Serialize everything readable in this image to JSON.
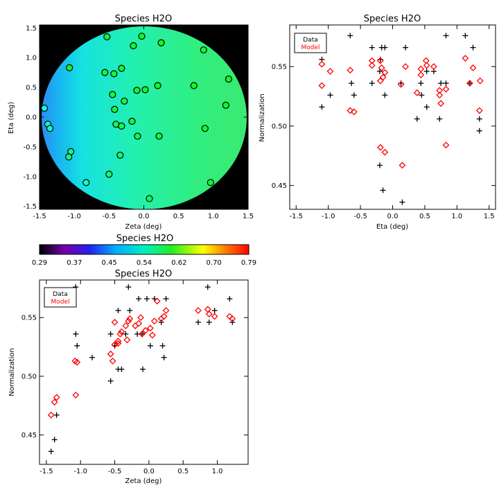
{
  "colors": {
    "data": "#000000",
    "model": "#ff0000",
    "background": "#000000"
  },
  "map_panel": {
    "title": "Species H2O",
    "xlabel": "Zeta (deg)",
    "ylabel": "Eta (deg)",
    "xlim": [
      -1.5,
      1.5
    ],
    "ylim": [
      -1.55,
      1.55
    ],
    "xticks": [
      "-1.5",
      "-1.0",
      "-0.5",
      "0.0",
      "0.5",
      "1.0",
      "1.5"
    ],
    "yticks": [
      "-1.5",
      "-1.0",
      "-0.5",
      "0.0",
      "0.5",
      "1.0",
      "1.5"
    ]
  },
  "colorbar": {
    "title": "Species H2O",
    "range": [
      0.29,
      0.79
    ],
    "ticks": [
      "0.29",
      "0.37",
      "0.45",
      "0.54",
      "0.62",
      "0.70",
      "0.79"
    ]
  },
  "eta_panel": {
    "title": "Species H2O",
    "xlabel": "Eta (deg)",
    "ylabel": "Normalization",
    "xlim": [
      -1.6,
      1.6
    ],
    "ylim": [
      0.43,
      0.585
    ],
    "xticks": [
      "-1.5",
      "-1.0",
      "-0.5",
      "0.0",
      "0.5",
      "1.0",
      "1.5"
    ],
    "yticks": [
      "0.45",
      "0.50",
      "0.55"
    ],
    "legend": {
      "data_label": "Data",
      "model_label": "Model"
    }
  },
  "zeta_panel": {
    "title": "Species H2O",
    "xlabel": "Zeta (deg)",
    "ylabel": "Normalization",
    "xlim": [
      -1.6,
      1.45
    ],
    "ylim": [
      0.425,
      0.582
    ],
    "xticks": [
      "-1.5",
      "-1.0",
      "-0.5",
      "0.0",
      "0.5",
      "1.0"
    ],
    "yticks": [
      "0.45",
      "0.50",
      "0.55"
    ],
    "legend": {
      "data_label": "Data",
      "model_label": "Model"
    }
  },
  "chart_data": [
    {
      "type": "scatter",
      "title": "Species H2O",
      "xlabel": "Zeta (deg)",
      "ylabel": "Eta (deg)",
      "xlim": [
        -1.5,
        1.5
      ],
      "ylim": [
        -1.55,
        1.55
      ],
      "grid": false,
      "points": [
        {
          "x": -0.53,
          "y": 1.35,
          "v": 0.548
        },
        {
          "x": -0.03,
          "y": 1.36,
          "v": 0.556
        },
        {
          "x": 0.25,
          "y": 1.25,
          "v": 0.563
        },
        {
          "x": -0.15,
          "y": 1.2,
          "v": 0.55
        },
        {
          "x": 0.86,
          "y": 1.13,
          "v": 0.555
        },
        {
          "x": -1.07,
          "y": 0.83,
          "v": 0.553
        },
        {
          "x": -0.32,
          "y": 0.82,
          "v": 0.551
        },
        {
          "x": -0.56,
          "y": 0.75,
          "v": 0.55
        },
        {
          "x": -0.43,
          "y": 0.73,
          "v": 0.549
        },
        {
          "x": 1.22,
          "y": 0.64,
          "v": 0.558
        },
        {
          "x": 0.72,
          "y": 0.53,
          "v": 0.556
        },
        {
          "x": 0.2,
          "y": 0.53,
          "v": 0.555
        },
        {
          "x": 0.02,
          "y": 0.46,
          "v": 0.553
        },
        {
          "x": -0.1,
          "y": 0.45,
          "v": 0.552
        },
        {
          "x": -0.45,
          "y": 0.38,
          "v": 0.546
        },
        {
          "x": -0.28,
          "y": 0.27,
          "v": 0.546
        },
        {
          "x": 1.18,
          "y": 0.2,
          "v": 0.555
        },
        {
          "x": -0.42,
          "y": 0.13,
          "v": 0.543
        },
        {
          "x": -1.43,
          "y": 0.15,
          "v": 0.467
        },
        {
          "x": -1.38,
          "y": -0.12,
          "v": 0.482
        },
        {
          "x": -1.35,
          "y": -0.19,
          "v": 0.478
        },
        {
          "x": -0.4,
          "y": -0.12,
          "v": 0.54
        },
        {
          "x": -0.32,
          "y": -0.15,
          "v": 0.538
        },
        {
          "x": -0.17,
          "y": -0.07,
          "v": 0.54
        },
        {
          "x": 0.88,
          "y": -0.19,
          "v": 0.551
        },
        {
          "x": -0.09,
          "y": -0.32,
          "v": 0.536
        },
        {
          "x": 0.22,
          "y": -0.32,
          "v": 0.544
        },
        {
          "x": -1.05,
          "y": -0.58,
          "v": 0.511
        },
        {
          "x": -1.08,
          "y": -0.67,
          "v": 0.513
        },
        {
          "x": -0.34,
          "y": -0.64,
          "v": 0.53
        },
        {
          "x": -0.5,
          "y": -0.96,
          "v": 0.518
        },
        {
          "x": -0.83,
          "y": -1.1,
          "v": 0.484
        },
        {
          "x": 0.96,
          "y": -1.1,
          "v": 0.549
        },
        {
          "x": 0.08,
          "y": -1.37,
          "v": 0.535
        }
      ]
    },
    {
      "type": "scatter",
      "title": "Species H2O",
      "xlabel": "Eta (deg)",
      "ylabel": "Normalization",
      "xlim": [
        -1.6,
        1.6
      ],
      "ylim": [
        0.43,
        0.585
      ],
      "legend": "top-left",
      "series": [
        {
          "name": "Data",
          "marker": "plus",
          "points": [
            [
              -1.34,
              0.566
            ],
            [
              -1.1,
              0.556
            ],
            [
              -1.1,
              0.516
            ],
            [
              -0.97,
              0.526
            ],
            [
              -0.66,
              0.576
            ],
            [
              -0.64,
              0.536
            ],
            [
              -0.6,
              0.526
            ],
            [
              -0.32,
              0.566
            ],
            [
              -0.32,
              0.536
            ],
            [
              -0.17,
              0.566
            ],
            [
              -0.19,
              0.556
            ],
            [
              -0.2,
              0.546
            ],
            [
              -0.12,
              0.566
            ],
            [
              -0.12,
              0.526
            ],
            [
              -0.2,
              0.467
            ],
            [
              -0.15,
              0.446
            ],
            [
              0.13,
              0.536
            ],
            [
              0.15,
              0.436
            ],
            [
              0.2,
              0.566
            ],
            [
              0.38,
              0.506
            ],
            [
              0.44,
              0.536
            ],
            [
              0.45,
              0.526
            ],
            [
              0.53,
              0.546
            ],
            [
              0.53,
              0.516
            ],
            [
              0.64,
              0.546
            ],
            [
              0.73,
              0.506
            ],
            [
              0.75,
              0.536
            ],
            [
              0.83,
              0.576
            ],
            [
              0.83,
              0.536
            ],
            [
              1.13,
              0.576
            ],
            [
              1.2,
              0.536
            ],
            [
              1.25,
              0.566
            ],
            [
              1.35,
              0.506
            ],
            [
              1.35,
              0.496
            ]
          ]
        },
        {
          "name": "Model",
          "marker": "diamond",
          "points": [
            [
              -1.37,
              0.564
            ],
            [
              -1.1,
              0.552
            ],
            [
              -1.1,
              0.534
            ],
            [
              -0.97,
              0.546
            ],
            [
              -0.66,
              0.547
            ],
            [
              -0.66,
              0.513
            ],
            [
              -0.6,
              0.512
            ],
            [
              -0.32,
              0.555
            ],
            [
              -0.32,
              0.551
            ],
            [
              -0.19,
              0.555
            ],
            [
              -0.17,
              0.549
            ],
            [
              -0.12,
              0.545
            ],
            [
              -0.15,
              0.541
            ],
            [
              -0.19,
              0.538
            ],
            [
              -0.19,
              0.482
            ],
            [
              -0.12,
              0.478
            ],
            [
              0.13,
              0.535
            ],
            [
              0.15,
              0.467
            ],
            [
              0.2,
              0.55
            ],
            [
              0.38,
              0.528
            ],
            [
              0.44,
              0.543
            ],
            [
              0.44,
              0.548
            ],
            [
              0.52,
              0.555
            ],
            [
              0.53,
              0.551
            ],
            [
              0.64,
              0.55
            ],
            [
              0.73,
              0.53
            ],
            [
              0.73,
              0.526
            ],
            [
              0.75,
              0.519
            ],
            [
              0.83,
              0.531
            ],
            [
              0.83,
              0.484
            ],
            [
              1.13,
              0.557
            ],
            [
              1.2,
              0.536
            ],
            [
              1.25,
              0.549
            ],
            [
              1.36,
              0.538
            ],
            [
              1.35,
              0.513
            ]
          ]
        }
      ]
    },
    {
      "type": "scatter",
      "title": "Species H2O",
      "xlabel": "Zeta (deg)",
      "ylabel": "Normalization",
      "xlim": [
        -1.6,
        1.45
      ],
      "ylim": [
        0.425,
        0.582
      ],
      "legend": "top-left",
      "series": [
        {
          "name": "Data",
          "marker": "plus",
          "points": [
            [
              -1.43,
              0.436
            ],
            [
              -1.38,
              0.446
            ],
            [
              -1.35,
              0.467
            ],
            [
              -1.07,
              0.576
            ],
            [
              -1.07,
              0.536
            ],
            [
              -1.05,
              0.526
            ],
            [
              -0.83,
              0.516
            ],
            [
              -0.56,
              0.536
            ],
            [
              -0.56,
              0.496
            ],
            [
              -0.5,
              0.526
            ],
            [
              -0.45,
              0.556
            ],
            [
              -0.45,
              0.506
            ],
            [
              -0.4,
              0.506
            ],
            [
              -0.34,
              0.536
            ],
            [
              -0.3,
              0.576
            ],
            [
              -0.28,
              0.556
            ],
            [
              -0.17,
              0.536
            ],
            [
              -0.15,
              0.566
            ],
            [
              -0.1,
              0.536
            ],
            [
              -0.09,
              0.506
            ],
            [
              -0.03,
              0.566
            ],
            [
              0.02,
              0.526
            ],
            [
              0.08,
              0.566
            ],
            [
              0.18,
              0.546
            ],
            [
              0.2,
              0.526
            ],
            [
              0.22,
              0.516
            ],
            [
              0.25,
              0.566
            ],
            [
              0.72,
              0.546
            ],
            [
              0.86,
              0.576
            ],
            [
              0.88,
              0.546
            ],
            [
              0.96,
              0.556
            ],
            [
              1.18,
              0.566
            ],
            [
              1.22,
              0.546
            ]
          ]
        },
        {
          "name": "Model",
          "marker": "diamond",
          "points": [
            [
              -1.43,
              0.467
            ],
            [
              -1.38,
              0.478
            ],
            [
              -1.35,
              0.482
            ],
            [
              -1.08,
              0.513
            ],
            [
              -1.05,
              0.512
            ],
            [
              -1.07,
              0.484
            ],
            [
              -0.56,
              0.519
            ],
            [
              -0.53,
              0.513
            ],
            [
              -0.5,
              0.546
            ],
            [
              -0.5,
              0.527
            ],
            [
              -0.45,
              0.53
            ],
            [
              -0.45,
              0.528
            ],
            [
              -0.42,
              0.536
            ],
            [
              -0.4,
              0.538
            ],
            [
              -0.34,
              0.543
            ],
            [
              -0.32,
              0.531
            ],
            [
              -0.3,
              0.547
            ],
            [
              -0.28,
              0.549
            ],
            [
              -0.2,
              0.543
            ],
            [
              -0.15,
              0.545
            ],
            [
              -0.12,
              0.55
            ],
            [
              -0.1,
              0.536
            ],
            [
              -0.05,
              0.539
            ],
            [
              0.02,
              0.541
            ],
            [
              0.05,
              0.535
            ],
            [
              0.08,
              0.547
            ],
            [
              0.12,
              0.564
            ],
            [
              0.18,
              0.549
            ],
            [
              0.22,
              0.551
            ],
            [
              0.25,
              0.556
            ],
            [
              0.72,
              0.556
            ],
            [
              0.86,
              0.557
            ],
            [
              0.88,
              0.553
            ],
            [
              0.96,
              0.551
            ],
            [
              1.18,
              0.551
            ],
            [
              1.22,
              0.549
            ]
          ]
        }
      ]
    }
  ]
}
